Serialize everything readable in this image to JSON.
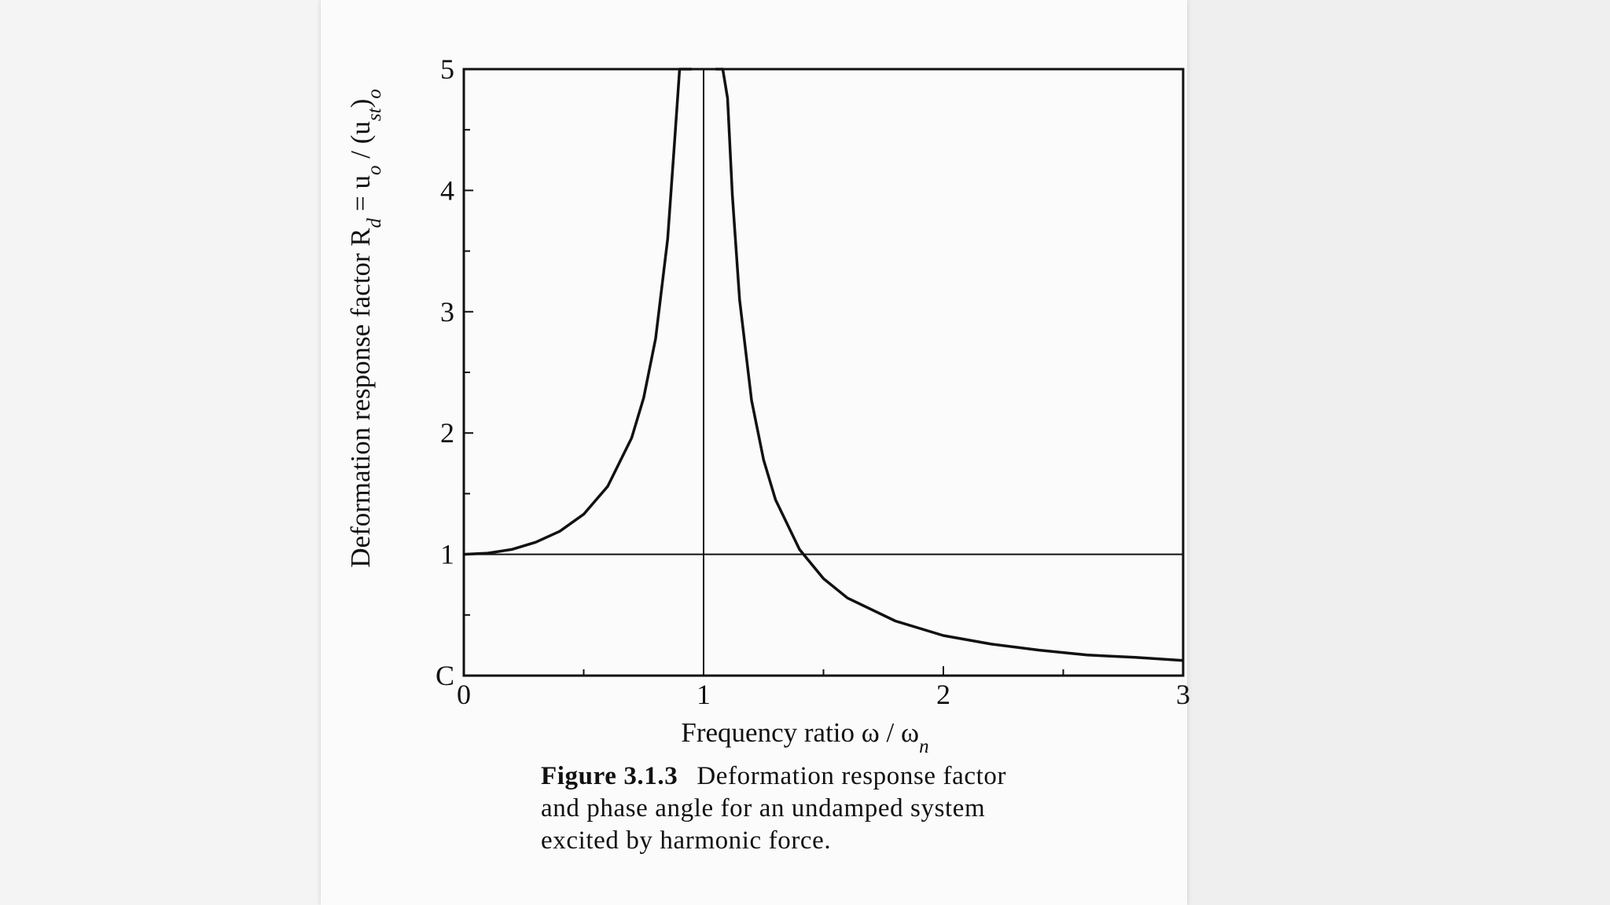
{
  "chart_data": {
    "type": "line",
    "title": "",
    "xlabel": "Frequency ratio ω / ω",
    "xlabel_sub": "n",
    "ylabel": "Deformation response factor R",
    "ylabel_sub1": "d",
    "ylabel_mid": " = u",
    "ylabel_sub2": "o",
    "ylabel_mid2": " / (u",
    "ylabel_sub3": "st",
    "ylabel_mid3": ")",
    "ylabel_sub4": "o",
    "xlim": [
      0,
      3
    ],
    "ylim": [
      0,
      5
    ],
    "x_ticks": [
      0,
      1,
      2,
      3
    ],
    "x_tick_labels": [
      "0",
      "1",
      "2",
      "3"
    ],
    "y_ticks": [
      0,
      1,
      2,
      3,
      4,
      5
    ],
    "y_tick_labels": [
      "C",
      "1",
      "2",
      "3",
      "4",
      "5"
    ],
    "reference_lines": [
      {
        "orientation": "horizontal",
        "value": 1
      },
      {
        "orientation": "vertical",
        "value": 1
      }
    ],
    "series": [
      {
        "x": [
          0,
          0.1,
          0.2,
          0.3,
          0.4,
          0.5,
          0.6,
          0.7,
          0.75,
          0.8,
          0.85,
          0.88,
          0.9,
          0.92,
          0.95,
          1.05,
          1.08,
          1.1,
          1.12,
          1.15,
          1.2,
          1.25,
          1.3,
          1.4,
          1.5,
          1.6,
          1.8,
          2.0,
          2.2,
          2.4,
          2.6,
          2.8,
          3.0
        ],
        "y": [
          1.0,
          1.01,
          1.04,
          1.1,
          1.19,
          1.33,
          1.56,
          1.96,
          2.29,
          2.78,
          3.6,
          4.43,
          5.0,
          5.0,
          5.0,
          5.0,
          5.0,
          4.76,
          3.96,
          3.1,
          2.27,
          1.78,
          1.45,
          1.04,
          0.8,
          0.64,
          0.45,
          0.33,
          0.26,
          0.21,
          0.17,
          0.15,
          0.125
        ]
      }
    ],
    "grid": false,
    "legend": "none"
  },
  "caption": {
    "figure_number": "Figure 3.1.3",
    "line1": "Deformation response factor",
    "line2": "and phase angle for an undamped system",
    "line3": "excited by harmonic force."
  },
  "colors": {
    "ink": "#111111",
    "paper": "#fbfbfb"
  }
}
